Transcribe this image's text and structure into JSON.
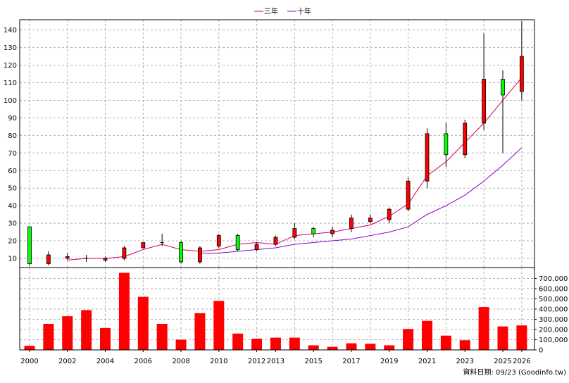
{
  "legend": {
    "three_year_label": "三年",
    "ten_year_label": "十年"
  },
  "footer": {
    "source_text": "資料日期: 09/23 (Goodinfo.tw)"
  },
  "colors": {
    "up_candle": "#ff0000",
    "down_candle": "#00ff00",
    "volume_bar": "#ff0000",
    "ma_three_year": "#cc0066",
    "ma_ten_year": "#8800cc"
  },
  "chart_data": [
    {
      "type": "candlestick",
      "title": "",
      "ylim": [
        0,
        145
      ],
      "yticks": [
        10,
        20,
        30,
        40,
        50,
        60,
        70,
        80,
        90,
        100,
        110,
        120,
        130,
        140
      ],
      "grid": true,
      "legend_position": "top-center",
      "candles": [
        {
          "x": 2000,
          "open": 28,
          "close": 7,
          "high": 28,
          "low": 6
        },
        {
          "x": 2001,
          "open": 7,
          "close": 12,
          "high": 14,
          "low": 6
        },
        {
          "x": 2002,
          "open": 10,
          "close": 11,
          "high": 13,
          "low": 9
        },
        {
          "x": 2003,
          "open": 10,
          "close": 10,
          "high": 12,
          "low": 8
        },
        {
          "x": 2004,
          "open": 9,
          "close": 10,
          "high": 11,
          "low": 8
        },
        {
          "x": 2005,
          "open": 10,
          "close": 16,
          "high": 17,
          "low": 9
        },
        {
          "x": 2006,
          "open": 16,
          "close": 19,
          "high": 19,
          "low": 16
        },
        {
          "x": 2007,
          "open": 19,
          "close": 19,
          "high": 24,
          "low": 17
        },
        {
          "x": 2008,
          "open": 19,
          "close": 8,
          "high": 20,
          "low": 7
        },
        {
          "x": 2009,
          "open": 8,
          "close": 16,
          "high": 17,
          "low": 7
        },
        {
          "x": 2010,
          "open": 17,
          "close": 23,
          "high": 24,
          "low": 16
        },
        {
          "x": 2011,
          "open": 23,
          "close": 15,
          "high": 24,
          "low": 14
        },
        {
          "x": 2012,
          "open": 15,
          "close": 18,
          "high": 19,
          "low": 14
        },
        {
          "x": 2013,
          "open": 18,
          "close": 22,
          "high": 23,
          "low": 17
        },
        {
          "x": 2014,
          "open": 22,
          "close": 27,
          "high": 30,
          "low": 21
        },
        {
          "x": 2015,
          "open": 27,
          "close": 24,
          "high": 28,
          "low": 22
        },
        {
          "x": 2016,
          "open": 24,
          "close": 26,
          "high": 28,
          "low": 22
        },
        {
          "x": 2017,
          "open": 27,
          "close": 33,
          "high": 35,
          "low": 25
        },
        {
          "x": 2018,
          "open": 31,
          "close": 33,
          "high": 35,
          "low": 30
        },
        {
          "x": 2019,
          "open": 32,
          "close": 38,
          "high": 39,
          "low": 30
        },
        {
          "x": 2020,
          "open": 38,
          "close": 54,
          "high": 56,
          "low": 37
        },
        {
          "x": 2021,
          "open": 54,
          "close": 81,
          "high": 84,
          "low": 50
        },
        {
          "x": 2022,
          "open": 81,
          "close": 69,
          "high": 87,
          "low": 62
        },
        {
          "x": 2023,
          "open": 69,
          "close": 87,
          "high": 89,
          "low": 67
        },
        {
          "x": 2024,
          "open": 87,
          "close": 112,
          "high": 138,
          "low": 83
        },
        {
          "x": 2025,
          "open": 112,
          "close": 103,
          "high": 117,
          "low": 70
        },
        {
          "x": 2026,
          "open": 105,
          "close": 125,
          "high": 145,
          "low": 100
        }
      ],
      "series": [
        {
          "name": "三年",
          "x": [
            2002,
            2003,
            2004,
            2005,
            2006,
            2007,
            2008,
            2009,
            2010,
            2011,
            2012,
            2013,
            2014,
            2015,
            2016,
            2017,
            2018,
            2019,
            2020,
            2021,
            2022,
            2023,
            2024,
            2025,
            2026
          ],
          "values": [
            9,
            10,
            10,
            11,
            15,
            18,
            15,
            14,
            15,
            18,
            19,
            18,
            23,
            24,
            25,
            27,
            29,
            34,
            41,
            57,
            65,
            76,
            87,
            100,
            113
          ]
        },
        {
          "name": "十年",
          "x": [
            2009,
            2010,
            2011,
            2012,
            2013,
            2014,
            2015,
            2016,
            2017,
            2018,
            2019,
            2020,
            2021,
            2022,
            2023,
            2024,
            2025,
            2026
          ],
          "values": [
            13,
            13,
            14,
            15,
            16,
            18,
            19,
            20,
            21,
            23,
            25,
            28,
            35,
            40,
            46,
            54,
            63,
            73
          ]
        }
      ]
    },
    {
      "type": "bar",
      "title": "",
      "ylim": [
        0,
        800000
      ],
      "yticks": [
        0,
        100000,
        200000,
        300000,
        400000,
        500000,
        600000,
        700000
      ],
      "ytick_labels": [
        "0",
        "100,000",
        "200,000",
        "300,000",
        "400,000",
        "500,000",
        "600,000",
        "700,000"
      ],
      "grid": true,
      "categories": [
        2000,
        2001,
        2002,
        2003,
        2004,
        2005,
        2006,
        2007,
        2008,
        2009,
        2010,
        2011,
        2012,
        2013,
        2014,
        2015,
        2016,
        2017,
        2018,
        2019,
        2020,
        2021,
        2022,
        2023,
        2024,
        2025,
        2026
      ],
      "values": [
        40000,
        255000,
        330000,
        390000,
        215000,
        755000,
        520000,
        255000,
        100000,
        360000,
        480000,
        160000,
        110000,
        120000,
        120000,
        45000,
        30000,
        65000,
        60000,
        45000,
        205000,
        285000,
        140000,
        95000,
        420000,
        230000,
        240000
      ],
      "xtick_labels": [
        "2000",
        "2002",
        "2004",
        "2006",
        "2008",
        "2010",
        "2012",
        "2013",
        "2015",
        "2017",
        "2019",
        "2021",
        "2023",
        "2025",
        "2026"
      ]
    }
  ]
}
